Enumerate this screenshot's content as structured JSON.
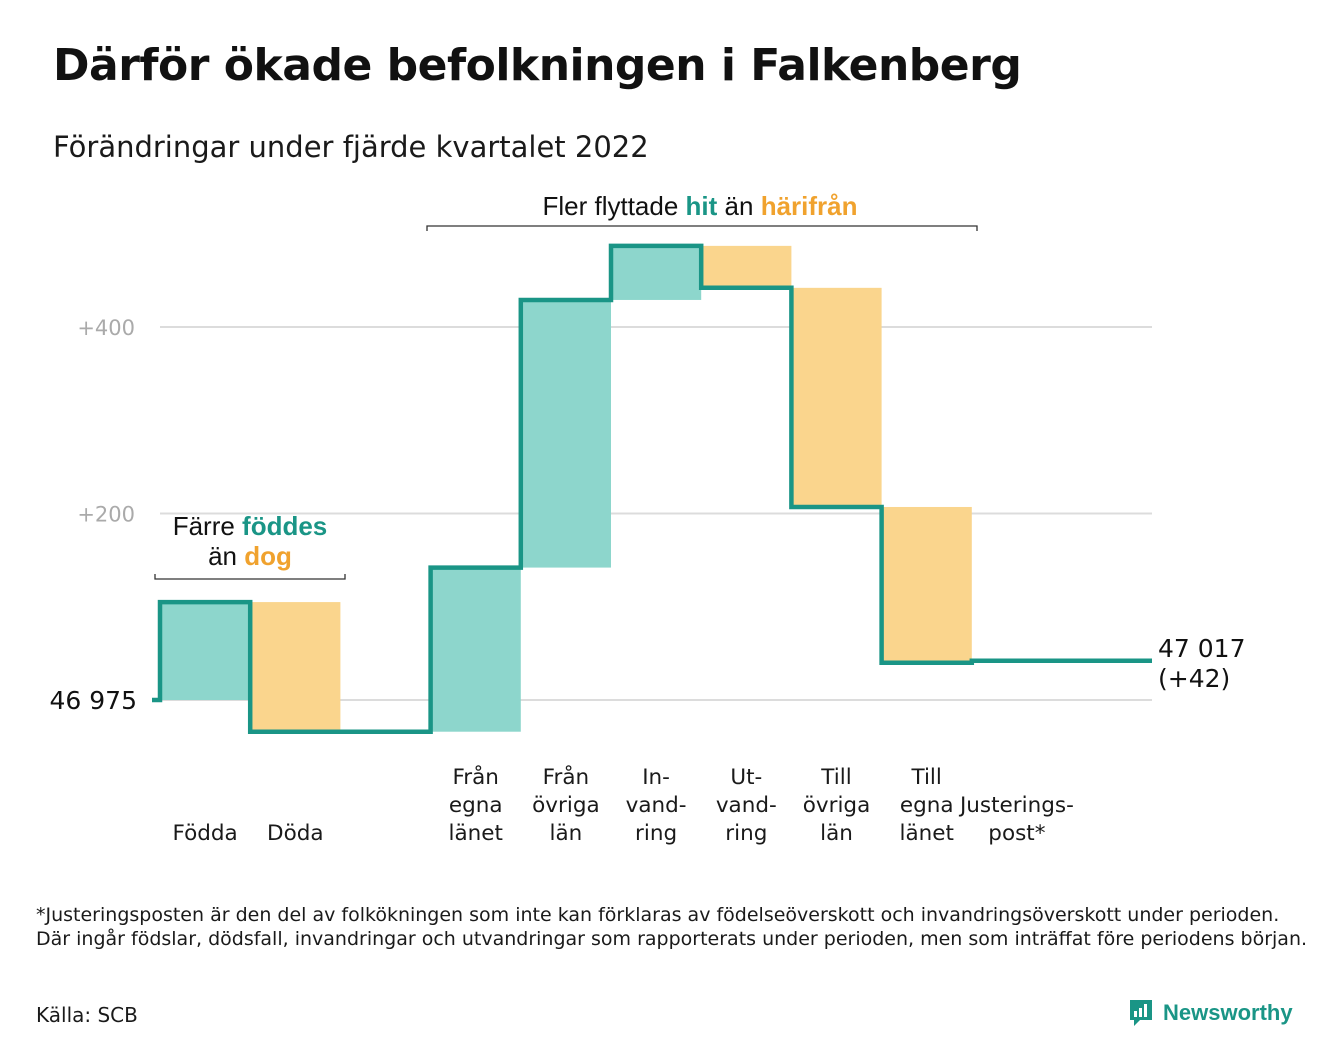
{
  "title": "Därför ökade befolkningen i Falkenberg",
  "subtitle": "Förändringar under fjärde kvartalet 2022",
  "colors": {
    "in": "#8dd6cc",
    "out": "#fad58d",
    "line": "#1a9586",
    "grid": "#dcdcdc",
    "hit_text": "#1a9586",
    "out_text": "#f0a22e"
  },
  "annotations": {
    "births": {
      "line1_pre": "Färre ",
      "line1_hit": "föddes",
      "line2_pre": "än ",
      "line2_out": "dog"
    },
    "migration": {
      "pre": "Fler flyttade ",
      "hit": "hit",
      "mid": " än ",
      "out": "härifrån"
    }
  },
  "footnote": "*Justeringsposten är den del av folkökningen som inte kan förklaras av födelseöverskott och invandringsöverskott under perioden. Där ingår födslar, dödsfall, invandringar och utvandringar som rapporterats under perioden, men som inträffat före periodens början.",
  "source": "Källa: SCB",
  "brand": {
    "name": "Newsworthy",
    "icon": "newsworthy-logo-icon"
  },
  "chart_data": {
    "type": "waterfall",
    "start_value": 46975,
    "start_label": "46 975",
    "end_label_line1": "47 017",
    "end_label_line2": "(+42)",
    "y_ticks": [
      {
        "value": 0,
        "label": ""
      },
      {
        "value": 200,
        "label": "+200"
      },
      {
        "value": 400,
        "label": "+400"
      }
    ],
    "ylim": [
      -35,
      470
    ],
    "grid": true,
    "steps": [
      {
        "lines": [
          "Födda"
        ],
        "delta": 105,
        "kind": "in"
      },
      {
        "lines": [
          "Döda"
        ],
        "delta": -139,
        "kind": "out"
      },
      {
        "lines": [],
        "delta": 0,
        "kind": "gap"
      },
      {
        "lines": [
          "Från",
          "egna",
          "länet"
        ],
        "delta": 176,
        "kind": "in"
      },
      {
        "lines": [
          "Från",
          "övriga",
          "län"
        ],
        "delta": 287,
        "kind": "in"
      },
      {
        "lines": [
          "In-",
          "vand-",
          "ring"
        ],
        "delta": 58,
        "kind": "in"
      },
      {
        "lines": [
          "Ut-",
          "vand-",
          "ring"
        ],
        "delta": -45,
        "kind": "out"
      },
      {
        "lines": [
          "Till",
          "övriga",
          "län"
        ],
        "delta": -235,
        "kind": "out"
      },
      {
        "lines": [
          "Till",
          "egna",
          "länet"
        ],
        "delta": -167,
        "kind": "out"
      },
      {
        "lines": [
          "Justerings-",
          "post*"
        ],
        "delta": 2,
        "kind": "adjust"
      }
    ]
  }
}
